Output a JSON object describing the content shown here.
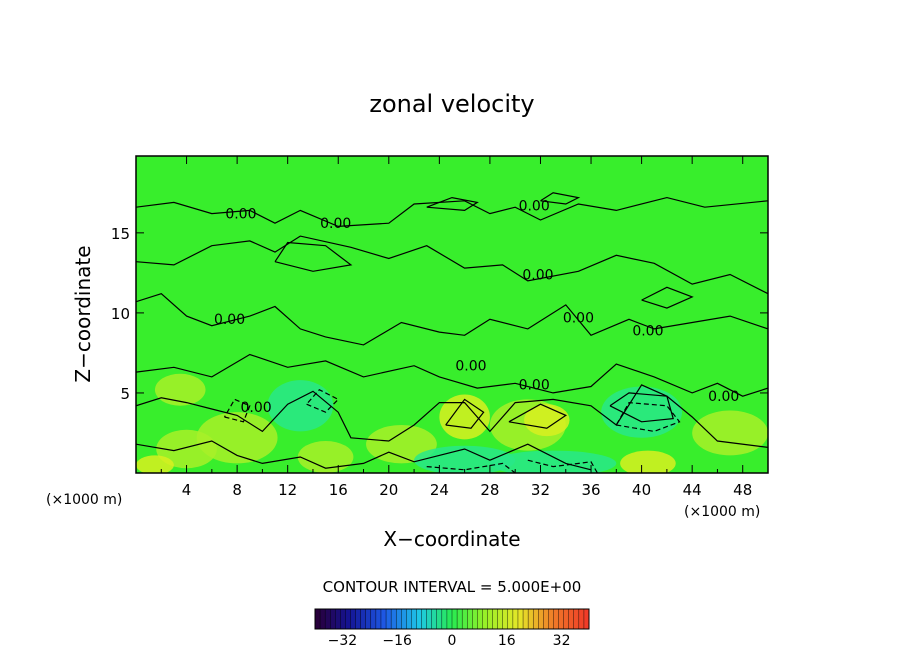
{
  "chart_data": {
    "type": "heatmap",
    "title": "zonal velocity",
    "xlabel": "X−coordinate",
    "ylabel": "Z−coordinate",
    "x_unit": "(×1000 m)",
    "xlim": [
      0,
      50
    ],
    "ylim": [
      0,
      19.8
    ],
    "x_ticks": [
      4,
      8,
      12,
      16,
      20,
      24,
      28,
      32,
      36,
      40,
      44,
      48
    ],
    "y_ticks": [
      5,
      10,
      15
    ],
    "contour_label": "0.00",
    "contour_interval_text": "CONTOUR INTERVAL = 5.000E+00",
    "colorbar_range": [
      -40,
      40
    ],
    "colorbar_ticks": [
      -32,
      -16,
      0,
      16,
      32
    ],
    "colorbar_tick_labels": [
      "−32",
      "−16",
      "0",
      "16",
      "32"
    ],
    "colors": {
      "field_base": "#38ee2c",
      "positive": "#a8f028",
      "strong_positive": "#d8f020",
      "negative": "#28e88a",
      "contour": "#000000"
    }
  }
}
